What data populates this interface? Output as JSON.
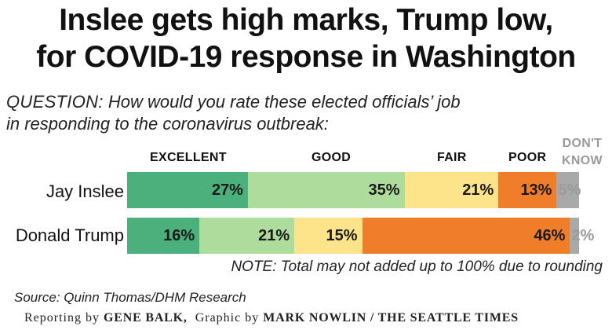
{
  "title": {
    "line1": "Inslee gets high marks, Trump low,",
    "line2": "for COVID-19 response in Washington"
  },
  "question": {
    "label": "QUESTION:",
    "line1": "How would you rate these elected officials’ job",
    "line2": "in responding to the coronavirus outbreak:"
  },
  "chart_data": {
    "type": "bar",
    "orientation": "horizontal-stacked-100",
    "categories": [
      "Jay Inslee",
      "Donald Trump"
    ],
    "series": [
      {
        "name": "EXCELLENT",
        "values": [
          27,
          16
        ],
        "labels": [
          "27%",
          "16%"
        ],
        "color": "#4cb07c"
      },
      {
        "name": "GOOD",
        "values": [
          35,
          21
        ],
        "labels": [
          "35%",
          "21%"
        ],
        "color": "#aedc9c"
      },
      {
        "name": "FAIR",
        "values": [
          21,
          15
        ],
        "labels": [
          "21%",
          "15%"
        ],
        "color": "#fde38a"
      },
      {
        "name": "POOR",
        "values": [
          13,
          46
        ],
        "labels": [
          "13%",
          "46%"
        ],
        "color": "#f07d2a"
      },
      {
        "name": "DON'T KNOW",
        "name_line1": "DON'T",
        "name_line2": "KNOW",
        "values": [
          5,
          2
        ],
        "labels": [
          "5%",
          "2%"
        ],
        "color": "#a9a9a9"
      }
    ],
    "legend_placement": "top",
    "grid": false
  },
  "note": "NOTE: Total may not added up to 100% due to rounding",
  "source": "Source: Quinn Thomas/DHM Research",
  "credit": {
    "reporting_prefix": "Reporting by",
    "reporter": "GENE BALK,",
    "graphic_prefix": "Graphic by",
    "artist": "MARK NOWLIN / THE SEATTLE TIMES"
  }
}
